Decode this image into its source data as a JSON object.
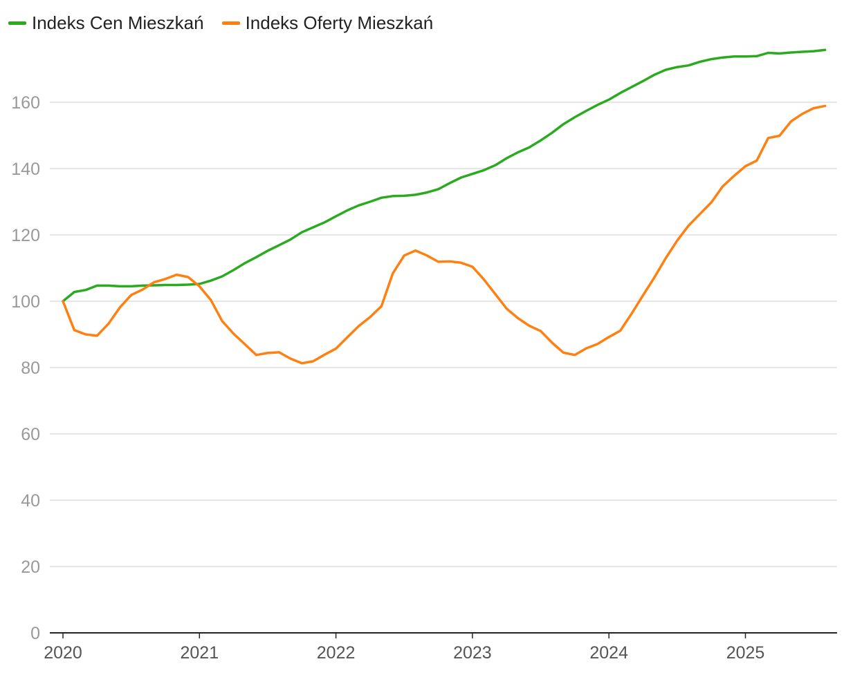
{
  "chart_data": {
    "type": "line",
    "title": "",
    "xlabel": "",
    "ylabel": "",
    "ylim": [
      0,
      175
    ],
    "yticks": [
      0,
      20,
      40,
      60,
      80,
      100,
      120,
      140,
      160
    ],
    "xticks": [
      "2020",
      "2021",
      "2022",
      "2023",
      "2024",
      "2025"
    ],
    "grid": "horizontal",
    "legend_position": "top-left",
    "series": [
      {
        "name": "Indeks Cen Mieszkań",
        "color": "#2aaa1e",
        "points": [
          [
            "2020-01",
            100.0
          ],
          [
            "2020-02",
            102.8
          ],
          [
            "2020-03",
            103.4
          ],
          [
            "2020-04",
            104.7
          ],
          [
            "2020-05",
            104.7
          ],
          [
            "2020-06",
            104.5
          ],
          [
            "2020-07",
            104.5
          ],
          [
            "2020-08",
            104.7
          ],
          [
            "2020-09",
            104.8
          ],
          [
            "2020-10",
            104.9
          ],
          [
            "2020-11",
            104.9
          ],
          [
            "2020-12",
            105.0
          ],
          [
            "2021-01",
            105.2
          ],
          [
            "2021-02",
            106.2
          ],
          [
            "2021-03",
            107.5
          ],
          [
            "2021-04",
            109.4
          ],
          [
            "2021-05",
            111.5
          ],
          [
            "2021-06",
            113.3
          ],
          [
            "2021-07",
            115.2
          ],
          [
            "2021-08",
            116.9
          ],
          [
            "2021-09",
            118.6
          ],
          [
            "2021-10",
            120.8
          ],
          [
            "2021-11",
            122.3
          ],
          [
            "2021-12",
            123.8
          ],
          [
            "2022-01",
            125.6
          ],
          [
            "2022-02",
            127.4
          ],
          [
            "2022-03",
            128.9
          ],
          [
            "2022-04",
            130.0
          ],
          [
            "2022-05",
            131.2
          ],
          [
            "2022-06",
            131.7
          ],
          [
            "2022-07",
            131.8
          ],
          [
            "2022-08",
            132.1
          ],
          [
            "2022-09",
            132.8
          ],
          [
            "2022-10",
            133.8
          ],
          [
            "2022-11",
            135.6
          ],
          [
            "2022-12",
            137.3
          ],
          [
            "2023-01",
            138.4
          ],
          [
            "2023-02",
            139.5
          ],
          [
            "2023-03",
            141.0
          ],
          [
            "2023-04",
            143.1
          ],
          [
            "2023-05",
            144.9
          ],
          [
            "2023-06",
            146.4
          ],
          [
            "2023-07",
            148.5
          ],
          [
            "2023-08",
            150.8
          ],
          [
            "2023-09",
            153.4
          ],
          [
            "2023-10",
            155.5
          ],
          [
            "2023-11",
            157.4
          ],
          [
            "2023-12",
            159.2
          ],
          [
            "2024-01",
            160.8
          ],
          [
            "2024-02",
            162.8
          ],
          [
            "2024-03",
            164.6
          ],
          [
            "2024-04",
            166.4
          ],
          [
            "2024-05",
            168.3
          ],
          [
            "2024-06",
            169.8
          ],
          [
            "2024-07",
            170.6
          ],
          [
            "2024-08",
            171.1
          ],
          [
            "2024-09",
            172.2
          ],
          [
            "2024-10",
            173.0
          ],
          [
            "2024-11",
            173.5
          ],
          [
            "2024-12",
            173.8
          ],
          [
            "2025-01",
            173.8
          ],
          [
            "2025-02",
            173.9
          ],
          [
            "2025-03",
            174.9
          ],
          [
            "2025-04",
            174.7
          ],
          [
            "2025-05",
            175.0
          ],
          [
            "2025-06",
            175.2
          ],
          [
            "2025-07",
            175.4
          ],
          [
            "2025-08",
            175.8
          ]
        ]
      },
      {
        "name": "Indeks Oferty Mieszkań",
        "color": "#ff8010",
        "points": [
          [
            "2020-01",
            100.0
          ],
          [
            "2020-02",
            91.3
          ],
          [
            "2020-03",
            90.0
          ],
          [
            "2020-04",
            89.6
          ],
          [
            "2020-05",
            93.2
          ],
          [
            "2020-06",
            98.1
          ],
          [
            "2020-07",
            101.9
          ],
          [
            "2020-08",
            103.5
          ],
          [
            "2020-09",
            105.7
          ],
          [
            "2020-10",
            106.7
          ],
          [
            "2020-11",
            108.0
          ],
          [
            "2020-12",
            107.3
          ],
          [
            "2021-01",
            104.5
          ],
          [
            "2021-02",
            100.4
          ],
          [
            "2021-03",
            94.0
          ],
          [
            "2021-04",
            90.2
          ],
          [
            "2021-05",
            87.0
          ],
          [
            "2021-06",
            83.8
          ],
          [
            "2021-07",
            84.4
          ],
          [
            "2021-08",
            84.6
          ],
          [
            "2021-09",
            82.7
          ],
          [
            "2021-10",
            81.3
          ],
          [
            "2021-11",
            81.9
          ],
          [
            "2021-12",
            83.9
          ],
          [
            "2022-01",
            85.7
          ],
          [
            "2022-02",
            89.1
          ],
          [
            "2022-03",
            92.5
          ],
          [
            "2022-04",
            95.2
          ],
          [
            "2022-05",
            98.5
          ],
          [
            "2022-06",
            108.4
          ],
          [
            "2022-07",
            113.8
          ],
          [
            "2022-08",
            115.3
          ],
          [
            "2022-09",
            113.8
          ],
          [
            "2022-10",
            111.9
          ],
          [
            "2022-11",
            112.0
          ],
          [
            "2022-12",
            111.6
          ],
          [
            "2023-01",
            110.4
          ],
          [
            "2023-02",
            106.6
          ],
          [
            "2023-03",
            102.2
          ],
          [
            "2023-04",
            97.8
          ],
          [
            "2023-05",
            94.9
          ],
          [
            "2023-06",
            92.6
          ],
          [
            "2023-07",
            91.0
          ],
          [
            "2023-08",
            87.5
          ],
          [
            "2023-09",
            84.5
          ],
          [
            "2023-10",
            83.8
          ],
          [
            "2023-11",
            85.8
          ],
          [
            "2023-12",
            87.1
          ],
          [
            "2024-01",
            89.2
          ],
          [
            "2024-02",
            91.1
          ],
          [
            "2024-03",
            96.3
          ],
          [
            "2024-04",
            101.8
          ],
          [
            "2024-05",
            107.2
          ],
          [
            "2024-06",
            113.0
          ],
          [
            "2024-07",
            118.3
          ],
          [
            "2024-08",
            122.8
          ],
          [
            "2024-09",
            126.3
          ],
          [
            "2024-10",
            129.8
          ],
          [
            "2024-11",
            134.6
          ],
          [
            "2024-12",
            137.8
          ],
          [
            "2025-01",
            140.7
          ],
          [
            "2025-02",
            142.4
          ],
          [
            "2025-03",
            149.2
          ],
          [
            "2025-04",
            149.9
          ],
          [
            "2025-05",
            154.2
          ],
          [
            "2025-06",
            156.5
          ],
          [
            "2025-07",
            158.2
          ],
          [
            "2025-08",
            158.9
          ]
        ]
      }
    ]
  }
}
